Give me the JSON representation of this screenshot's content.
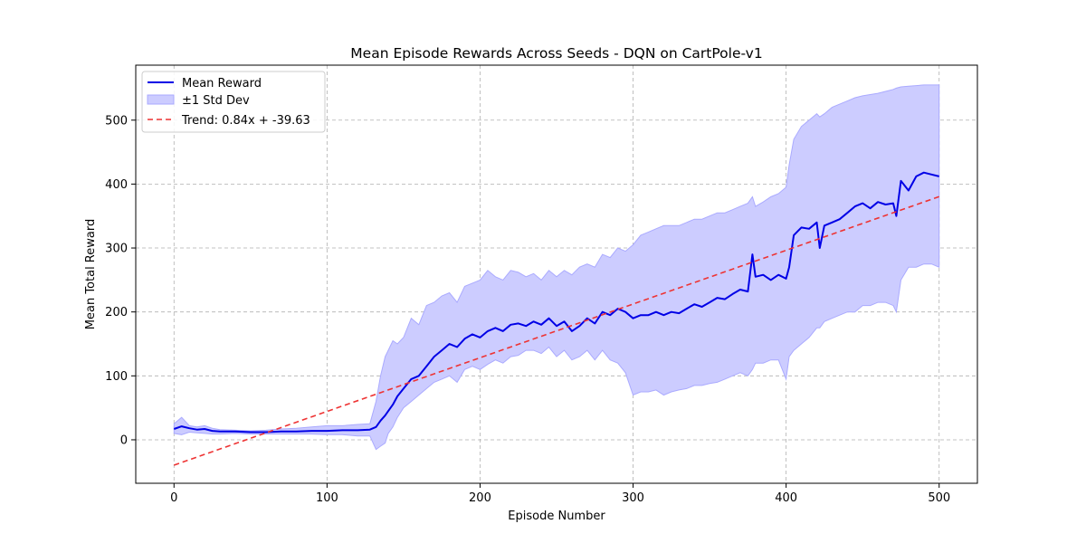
{
  "chart_data": {
    "type": "line",
    "title": "Mean Episode Rewards Across Seeds - DQN on CartPole-v1",
    "xlabel": "Episode Number",
    "ylabel": "Mean Total Reward",
    "xlim": [
      -25,
      525
    ],
    "ylim": [
      -68,
      586
    ],
    "xticks": [
      0,
      100,
      200,
      300,
      400,
      500
    ],
    "yticks": [
      0,
      100,
      200,
      300,
      400,
      500
    ],
    "grid": true,
    "legend_position": "top-left",
    "colors": {
      "mean": "#0000e6",
      "band_fill": "#ccccff",
      "band_edge": "#aaaaff",
      "trend": "#ee3333"
    },
    "legend": [
      "Mean Reward",
      "±1 Std Dev",
      "Trend: 0.84x + -39.63"
    ],
    "series": [
      {
        "name": "Mean Reward",
        "style": "line",
        "x": [
          0,
          5,
          10,
          15,
          20,
          25,
          30,
          40,
          50,
          60,
          70,
          80,
          90,
          100,
          110,
          120,
          128,
          132,
          135,
          138,
          140,
          143,
          146,
          150,
          155,
          160,
          165,
          170,
          175,
          180,
          185,
          190,
          195,
          200,
          205,
          210,
          215,
          220,
          225,
          230,
          235,
          240,
          245,
          250,
          255,
          260,
          265,
          270,
          275,
          280,
          285,
          290,
          295,
          300,
          305,
          310,
          315,
          320,
          325,
          330,
          335,
          340,
          345,
          350,
          355,
          360,
          365,
          370,
          375,
          378,
          380,
          385,
          390,
          395,
          400,
          402,
          405,
          410,
          415,
          420,
          422,
          425,
          430,
          435,
          440,
          445,
          450,
          455,
          460,
          465,
          470,
          472,
          475,
          480,
          485,
          490,
          495,
          500
        ],
        "y": [
          17,
          21,
          18,
          16,
          17,
          14,
          13,
          13,
          12,
          12,
          13,
          13,
          14,
          14,
          15,
          15,
          16,
          20,
          30,
          38,
          45,
          55,
          68,
          80,
          95,
          100,
          115,
          130,
          140,
          150,
          145,
          158,
          165,
          160,
          170,
          175,
          170,
          180,
          182,
          178,
          185,
          180,
          190,
          178,
          185,
          170,
          178,
          190,
          182,
          200,
          195,
          205,
          200,
          190,
          195,
          195,
          200,
          195,
          200,
          198,
          205,
          212,
          208,
          215,
          222,
          220,
          228,
          235,
          232,
          290,
          255,
          258,
          250,
          258,
          252,
          270,
          320,
          332,
          330,
          340,
          300,
          335,
          340,
          345,
          355,
          365,
          370,
          362,
          372,
          368,
          370,
          350,
          405,
          390,
          412,
          418,
          415,
          412
        ]
      },
      {
        "name": "±1 Std Dev",
        "style": "band",
        "x": [
          0,
          5,
          10,
          15,
          20,
          25,
          30,
          40,
          50,
          60,
          70,
          80,
          90,
          100,
          110,
          120,
          128,
          132,
          135,
          138,
          140,
          143,
          146,
          150,
          155,
          160,
          165,
          170,
          175,
          180,
          185,
          190,
          195,
          200,
          205,
          210,
          215,
          220,
          225,
          230,
          235,
          240,
          245,
          250,
          255,
          260,
          265,
          270,
          275,
          280,
          285,
          290,
          295,
          300,
          305,
          310,
          315,
          320,
          325,
          330,
          335,
          340,
          345,
          350,
          355,
          360,
          365,
          370,
          375,
          378,
          380,
          385,
          390,
          395,
          400,
          402,
          405,
          410,
          415,
          420,
          422,
          425,
          430,
          435,
          440,
          445,
          450,
          455,
          460,
          465,
          470,
          472,
          475,
          480,
          485,
          490,
          495,
          500
        ],
        "upper": [
          25,
          35,
          22,
          20,
          22,
          18,
          16,
          15,
          14,
          15,
          17,
          18,
          20,
          22,
          22,
          24,
          25,
          60,
          100,
          130,
          140,
          155,
          150,
          160,
          190,
          180,
          210,
          215,
          225,
          230,
          215,
          240,
          245,
          250,
          265,
          255,
          250,
          265,
          262,
          255,
          260,
          250,
          265,
          255,
          265,
          258,
          270,
          275,
          270,
          290,
          285,
          300,
          295,
          305,
          320,
          325,
          330,
          335,
          335,
          335,
          340,
          345,
          345,
          350,
          355,
          355,
          360,
          365,
          370,
          380,
          365,
          372,
          380,
          385,
          395,
          430,
          470,
          490,
          500,
          510,
          505,
          510,
          520,
          525,
          530,
          535,
          538,
          540,
          542,
          545,
          548,
          550,
          552,
          553,
          554,
          555,
          555,
          555
        ],
        "lower": [
          10,
          8,
          12,
          11,
          10,
          9,
          9,
          10,
          9,
          9,
          9,
          9,
          9,
          8,
          8,
          6,
          6,
          -15,
          -10,
          -5,
          10,
          20,
          35,
          50,
          60,
          70,
          80,
          90,
          95,
          100,
          90,
          110,
          115,
          110,
          118,
          125,
          120,
          130,
          132,
          140,
          140,
          135,
          145,
          130,
          140,
          125,
          130,
          140,
          125,
          140,
          125,
          120,
          105,
          70,
          75,
          75,
          78,
          70,
          75,
          78,
          80,
          85,
          85,
          88,
          90,
          95,
          100,
          105,
          100,
          110,
          120,
          120,
          125,
          125,
          95,
          130,
          140,
          150,
          160,
          175,
          175,
          185,
          190,
          195,
          200,
          200,
          210,
          210,
          215,
          215,
          210,
          200,
          250,
          270,
          270,
          275,
          275,
          270
        ]
      },
      {
        "name": "Trend: 0.84x + -39.63",
        "style": "dashed",
        "x": [
          0,
          500
        ],
        "y": [
          -39.63,
          380.37
        ]
      }
    ]
  }
}
